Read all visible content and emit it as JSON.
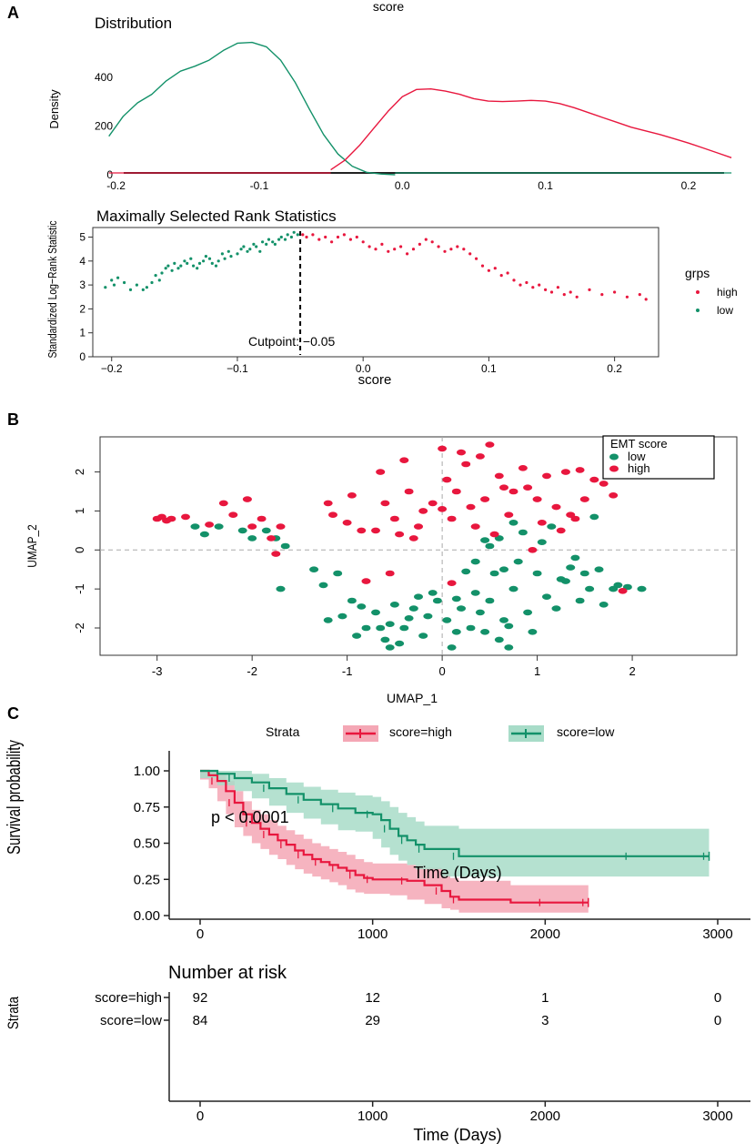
{
  "colors": {
    "high": "#E8173E",
    "low": "#139169",
    "high_fill": "#F4A7B5",
    "low_fill": "#A8DCC8",
    "grid": "#aaaaaa"
  },
  "chart_data": [
    {
      "panel": "A",
      "type": "line",
      "super_title": "score",
      "title": "Distribution",
      "xlabel": "",
      "ylabel": "Density",
      "xticks": [
        "-0.2",
        "-0.1",
        "0.0",
        "0.1",
        "0.2"
      ],
      "yticks": [
        "0",
        "200",
        "400"
      ],
      "xlim": [
        -0.215,
        0.235
      ],
      "ylim": [
        0,
        560
      ],
      "series": [
        {
          "name": "low",
          "color_key": "low",
          "x": [
            -0.205,
            -0.195,
            -0.185,
            -0.175,
            -0.165,
            -0.155,
            -0.145,
            -0.135,
            -0.125,
            -0.115,
            -0.105,
            -0.095,
            -0.085,
            -0.075,
            -0.065,
            -0.055,
            -0.045,
            -0.035,
            -0.025,
            -0.015,
            -0.005
          ],
          "y": [
            158,
            240,
            295,
            330,
            385,
            425,
            445,
            470,
            510,
            540,
            543,
            525,
            470,
            380,
            270,
            165,
            85,
            35,
            10,
            3,
            0
          ]
        },
        {
          "name": "high",
          "color_key": "high",
          "x": [
            -0.05,
            -0.04,
            -0.03,
            -0.02,
            -0.01,
            0.0,
            0.01,
            0.02,
            0.03,
            0.04,
            0.05,
            0.06,
            0.07,
            0.08,
            0.09,
            0.1,
            0.11,
            0.12,
            0.13,
            0.14,
            0.15,
            0.16,
            0.17,
            0.18,
            0.19,
            0.2,
            0.21,
            0.22,
            0.23
          ],
          "y": [
            20,
            60,
            120,
            190,
            260,
            320,
            350,
            352,
            343,
            330,
            312,
            302,
            300,
            302,
            305,
            302,
            292,
            275,
            255,
            235,
            215,
            195,
            180,
            165,
            148,
            130,
            110,
            90,
            70
          ]
        }
      ]
    },
    {
      "panel": "A",
      "type": "scatter",
      "title": "Maximally Selected Rank Statistics",
      "xlabel": "score",
      "ylabel": "Standardized Log−Rank Statistic",
      "xticks": [
        "−0.2",
        "−0.1",
        "0.0",
        "0.1",
        "0.2"
      ],
      "yticks": [
        "0",
        "1",
        "2",
        "3",
        "4",
        "5"
      ],
      "xlim": [
        -0.215,
        0.235
      ],
      "ylim": [
        0,
        5.4
      ],
      "cutpoint": -0.05,
      "cutpoint_label": "Cutpoint: −0.05",
      "legend_title": "grps",
      "legend_items": [
        "high",
        "low"
      ],
      "series": [
        {
          "name": "low",
          "color_key": "low",
          "x": [
            -0.205,
            -0.2,
            -0.198,
            -0.195,
            -0.19,
            -0.185,
            -0.18,
            -0.175,
            -0.172,
            -0.168,
            -0.165,
            -0.162,
            -0.16,
            -0.157,
            -0.155,
            -0.152,
            -0.15,
            -0.147,
            -0.145,
            -0.142,
            -0.14,
            -0.137,
            -0.135,
            -0.132,
            -0.13,
            -0.127,
            -0.125,
            -0.122,
            -0.12,
            -0.117,
            -0.115,
            -0.112,
            -0.11,
            -0.107,
            -0.105,
            -0.1,
            -0.097,
            -0.095,
            -0.092,
            -0.09,
            -0.087,
            -0.085,
            -0.082,
            -0.08,
            -0.077,
            -0.075,
            -0.072,
            -0.07,
            -0.067,
            -0.065,
            -0.062,
            -0.06,
            -0.057,
            -0.055,
            -0.052
          ],
          "y": [
            2.9,
            3.2,
            3.0,
            3.3,
            3.1,
            2.8,
            3.0,
            2.8,
            2.9,
            3.1,
            3.4,
            3.2,
            3.5,
            3.7,
            3.8,
            3.6,
            3.9,
            3.7,
            3.8,
            4.0,
            3.9,
            4.1,
            3.8,
            3.7,
            3.9,
            4.0,
            4.2,
            4.1,
            3.9,
            3.8,
            4.0,
            4.3,
            4.1,
            4.4,
            4.2,
            4.3,
            4.5,
            4.6,
            4.4,
            4.5,
            4.7,
            4.6,
            4.4,
            4.8,
            4.7,
            4.9,
            4.8,
            4.7,
            4.9,
            5.0,
            4.9,
            5.1,
            5.0,
            5.2,
            5.1
          ]
        },
        {
          "name": "high",
          "color_key": "high",
          "x": [
            -0.048,
            -0.045,
            -0.04,
            -0.035,
            -0.03,
            -0.025,
            -0.02,
            -0.015,
            -0.01,
            -0.005,
            0.0,
            0.005,
            0.01,
            0.015,
            0.02,
            0.025,
            0.03,
            0.035,
            0.04,
            0.045,
            0.05,
            0.055,
            0.06,
            0.065,
            0.07,
            0.075,
            0.08,
            0.085,
            0.09,
            0.095,
            0.1,
            0.105,
            0.11,
            0.115,
            0.12,
            0.125,
            0.13,
            0.135,
            0.14,
            0.145,
            0.15,
            0.155,
            0.16,
            0.165,
            0.17,
            0.18,
            0.19,
            0.2,
            0.21,
            0.22,
            0.225
          ],
          "y": [
            5.1,
            5.0,
            5.1,
            4.9,
            5.0,
            4.8,
            5.0,
            5.1,
            4.9,
            5.0,
            4.8,
            4.6,
            4.5,
            4.7,
            4.4,
            4.5,
            4.6,
            4.3,
            4.5,
            4.7,
            4.9,
            4.8,
            4.6,
            4.4,
            4.5,
            4.6,
            4.5,
            4.3,
            4.1,
            3.8,
            3.6,
            3.7,
            3.4,
            3.5,
            3.2,
            3.0,
            3.1,
            2.9,
            3.0,
            2.8,
            2.7,
            2.9,
            2.6,
            2.7,
            2.5,
            2.8,
            2.6,
            2.7,
            2.5,
            2.6,
            2.4
          ]
        }
      ]
    },
    {
      "panel": "B",
      "type": "scatter",
      "title": "",
      "xlabel": "UMAP_1",
      "ylabel": "UMAP_2",
      "xticks": [
        "-3",
        "-2",
        "-1",
        "0",
        "1",
        "2"
      ],
      "yticks": [
        "-2",
        "-1",
        "0",
        "1",
        "2"
      ],
      "xlim": [
        -3.6,
        3.1
      ],
      "ylim": [
        -2.7,
        2.9
      ],
      "legend_title": "EMT score",
      "legend_items": [
        "low",
        "high"
      ],
      "series": [
        {
          "name": "low",
          "color_key": "low",
          "x": [
            -2.6,
            -2.5,
            -2.35,
            -2.1,
            -2.0,
            -1.85,
            -1.75,
            -1.65,
            -1.7,
            -1.35,
            -1.25,
            -1.1,
            -1.05,
            -0.95,
            -0.9,
            -0.8,
            -0.7,
            -0.6,
            -0.55,
            -0.45,
            -0.4,
            -0.3,
            -0.2,
            -0.15,
            -0.05,
            0.05,
            0.1,
            0.2,
            0.3,
            0.35,
            0.4,
            0.45,
            0.5,
            0.6,
            0.65,
            0.7,
            0.75,
            0.8,
            0.9,
            1.0,
            1.05,
            1.1,
            1.2,
            1.3,
            1.4,
            1.45,
            1.5,
            1.55,
            1.65,
            1.7,
            1.85,
            1.95,
            2.1,
            0.5,
            0.55,
            0.6,
            0.75,
            -0.5,
            -0.25,
            0.35,
            0.45,
            0.65,
            0.85,
            1.15,
            1.35,
            1.6,
            1.8,
            -1.2,
            -0.85,
            -0.65,
            -0.35,
            -0.1,
            0.15,
            0.25,
            0.7,
            0.95,
            1.25,
            -0.55,
            0.15
          ],
          "y": [
            0.6,
            0.4,
            0.6,
            0.5,
            0.3,
            0.5,
            0.3,
            0.1,
            -1.0,
            -0.5,
            -0.9,
            -0.6,
            -1.7,
            -1.3,
            -2.2,
            -2.0,
            -1.6,
            -2.3,
            -1.9,
            -2.4,
            -2.0,
            -1.5,
            -2.2,
            -1.7,
            -1.3,
            -1.8,
            -2.5,
            -1.5,
            -2.0,
            -1.1,
            -1.6,
            -2.1,
            -1.3,
            -2.3,
            -1.8,
            -2.5,
            -1.0,
            -0.3,
            -1.6,
            -0.6,
            0.2,
            -1.2,
            -1.5,
            -0.8,
            -0.2,
            -1.3,
            -0.6,
            -1.0,
            -0.5,
            -1.4,
            -0.9,
            -0.95,
            -1.0,
            0.1,
            -0.6,
            0.3,
            0.7,
            -1.4,
            -1.2,
            -0.3,
            0.25,
            -0.5,
            0.45,
            0.6,
            -0.45,
            0.85,
            -1.0,
            -1.8,
            -1.45,
            -2.0,
            -1.75,
            -1.1,
            -1.25,
            -0.55,
            -1.95,
            -2.1,
            -0.75,
            -2.5,
            -2.1
          ]
        },
        {
          "name": "high",
          "color_key": "high",
          "x": [
            -3.0,
            -2.95,
            -2.9,
            -2.85,
            -2.7,
            -2.45,
            -2.3,
            -2.2,
            -2.05,
            -2.0,
            -1.9,
            -1.8,
            -1.7,
            -1.2,
            -1.15,
            -1.0,
            -0.95,
            -0.85,
            -0.7,
            -0.6,
            -0.5,
            -0.45,
            -0.4,
            -0.35,
            -0.3,
            -0.2,
            -0.1,
            0.0,
            0.05,
            0.1,
            0.15,
            0.2,
            0.3,
            0.35,
            0.4,
            0.45,
            0.5,
            0.55,
            0.6,
            0.7,
            0.75,
            0.85,
            0.9,
            1.0,
            1.05,
            1.1,
            1.2,
            1.25,
            1.3,
            1.4,
            1.5,
            1.6,
            1.7,
            1.8,
            -0.65,
            -0.25,
            0.0,
            0.25,
            0.65,
            1.35,
            1.9,
            -0.55,
            -1.75,
            -0.8,
            0.1,
            0.95,
            1.45
          ],
          "y": [
            0.8,
            0.85,
            0.75,
            0.8,
            0.85,
            0.65,
            1.2,
            0.9,
            1.3,
            0.6,
            0.8,
            0.3,
            0.6,
            1.2,
            0.9,
            0.7,
            1.4,
            0.5,
            0.5,
            1.2,
            0.8,
            0.4,
            2.3,
            1.5,
            0.3,
            1.0,
            1.2,
            2.6,
            1.8,
            0.8,
            1.5,
            2.5,
            1.1,
            0.6,
            2.4,
            1.3,
            2.7,
            0.4,
            1.9,
            0.9,
            1.5,
            2.1,
            1.6,
            1.3,
            0.7,
            1.9,
            1.1,
            0.5,
            2.0,
            0.8,
            1.3,
            1.8,
            1.7,
            1.4,
            2.0,
            0.6,
            1.05,
            2.2,
            1.6,
            0.9,
            -1.05,
            -0.6,
            -0.1,
            -0.8,
            -0.85,
            0.0,
            2.05
          ]
        }
      ]
    },
    {
      "panel": "C",
      "type": "line",
      "title": "",
      "xlabel": "Time (Days)",
      "ylabel": "Survival probability",
      "xticks": [
        "0",
        "1000",
        "2000",
        "3000"
      ],
      "yticks": [
        "0.00",
        "0.25",
        "0.50",
        "0.75",
        "1.00"
      ],
      "xlim": [
        -180,
        3120
      ],
      "ylim": [
        -0.04,
        1.04
      ],
      "legend_title": "Strata",
      "legend_items": [
        "score=high",
        "score=low"
      ],
      "pvalue": "p < 0.0001",
      "series": [
        {
          "name": "score=high",
          "color_key": "high",
          "x": [
            0,
            50,
            100,
            150,
            200,
            250,
            300,
            350,
            400,
            450,
            500,
            550,
            600,
            650,
            700,
            750,
            800,
            850,
            900,
            950,
            1000,
            1100,
            1200,
            1300,
            1400,
            1450,
            1500,
            1800,
            2000,
            2200,
            2250
          ],
          "y": [
            1.0,
            0.97,
            0.93,
            0.86,
            0.78,
            0.7,
            0.64,
            0.6,
            0.56,
            0.52,
            0.49,
            0.45,
            0.42,
            0.39,
            0.37,
            0.35,
            0.33,
            0.31,
            0.28,
            0.26,
            0.25,
            0.25,
            0.24,
            0.21,
            0.17,
            0.13,
            0.11,
            0.09,
            0.09,
            0.09,
            0.09
          ],
          "lower": [
            1.0,
            0.94,
            0.88,
            0.79,
            0.7,
            0.61,
            0.55,
            0.5,
            0.46,
            0.42,
            0.39,
            0.35,
            0.32,
            0.29,
            0.27,
            0.25,
            0.23,
            0.21,
            0.18,
            0.16,
            0.15,
            0.15,
            0.14,
            0.11,
            0.08,
            0.05,
            0.04,
            0.02,
            0.02,
            0.02,
            0.02
          ],
          "upper": [
            1.0,
            1.0,
            0.98,
            0.93,
            0.86,
            0.79,
            0.73,
            0.7,
            0.66,
            0.62,
            0.59,
            0.56,
            0.53,
            0.5,
            0.48,
            0.46,
            0.44,
            0.42,
            0.39,
            0.37,
            0.36,
            0.36,
            0.35,
            0.33,
            0.3,
            0.26,
            0.24,
            0.21,
            0.21,
            0.21,
            0.21
          ]
        },
        {
          "name": "score=low",
          "color_key": "low",
          "x": [
            0,
            100,
            200,
            300,
            400,
            500,
            600,
            700,
            800,
            900,
            1000,
            1050,
            1100,
            1150,
            1200,
            1250,
            1300,
            1400,
            1500,
            2000,
            2500,
            2900,
            2950
          ],
          "y": [
            1.0,
            0.98,
            0.95,
            0.92,
            0.88,
            0.84,
            0.8,
            0.77,
            0.74,
            0.71,
            0.7,
            0.66,
            0.6,
            0.55,
            0.52,
            0.49,
            0.46,
            0.46,
            0.41,
            0.41,
            0.41,
            0.41,
            0.41
          ],
          "lower": [
            1.0,
            0.95,
            0.9,
            0.86,
            0.81,
            0.76,
            0.71,
            0.67,
            0.63,
            0.59,
            0.58,
            0.53,
            0.47,
            0.42,
            0.38,
            0.35,
            0.32,
            0.32,
            0.27,
            0.27,
            0.27,
            0.27,
            0.27
          ],
          "upper": [
            1.0,
            1.0,
            1.0,
            0.98,
            0.95,
            0.92,
            0.89,
            0.87,
            0.85,
            0.83,
            0.82,
            0.79,
            0.75,
            0.71,
            0.68,
            0.65,
            0.62,
            0.62,
            0.6,
            0.6,
            0.6,
            0.6,
            0.6
          ]
        }
      ],
      "risk_table": {
        "title": "Number at risk",
        "axis_label": "Strata",
        "xlabel": "Time (Days)",
        "rows": [
          {
            "label": "score=high",
            "color_key": "high",
            "values": [
              "92",
              "12",
              "1",
              "0"
            ]
          },
          {
            "label": "score=low",
            "color_key": "low",
            "values": [
              "84",
              "29",
              "3",
              "0"
            ]
          }
        ]
      }
    }
  ],
  "panel_labels": {
    "a": "A",
    "b": "B",
    "c": "C"
  }
}
